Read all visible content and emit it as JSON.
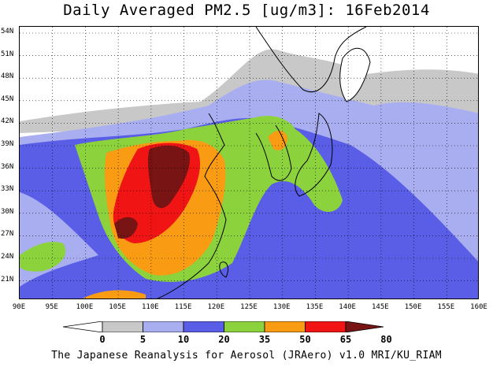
{
  "title": "Daily Averaged PM2.5 [ug/m3]: 16Feb2014",
  "latitude_labels": [
    "54N",
    "51N",
    "48N",
    "45N",
    "42N",
    "39N",
    "36N",
    "33N",
    "30N",
    "27N",
    "24N",
    "21N"
  ],
  "longitude_labels": [
    "90E",
    "95E",
    "100E",
    "105E",
    "110E",
    "115E",
    "120E",
    "125E",
    "130E",
    "135E",
    "140E",
    "145E",
    "150E",
    "155E",
    "160E"
  ],
  "colorbar": {
    "tick_labels": [
      "0",
      "5",
      "10",
      "20",
      "35",
      "50",
      "65",
      "80"
    ],
    "colors": [
      "#ffffff",
      "#c8c8c8",
      "#a8aef0",
      "#5a5ee6",
      "#8cd23c",
      "#fa9b14",
      "#f01414",
      "#781414"
    ]
  },
  "credit": "The Japanese Reanalysis for Aerosol (JRAero) v1.0 MRI/KU_RIAM"
}
